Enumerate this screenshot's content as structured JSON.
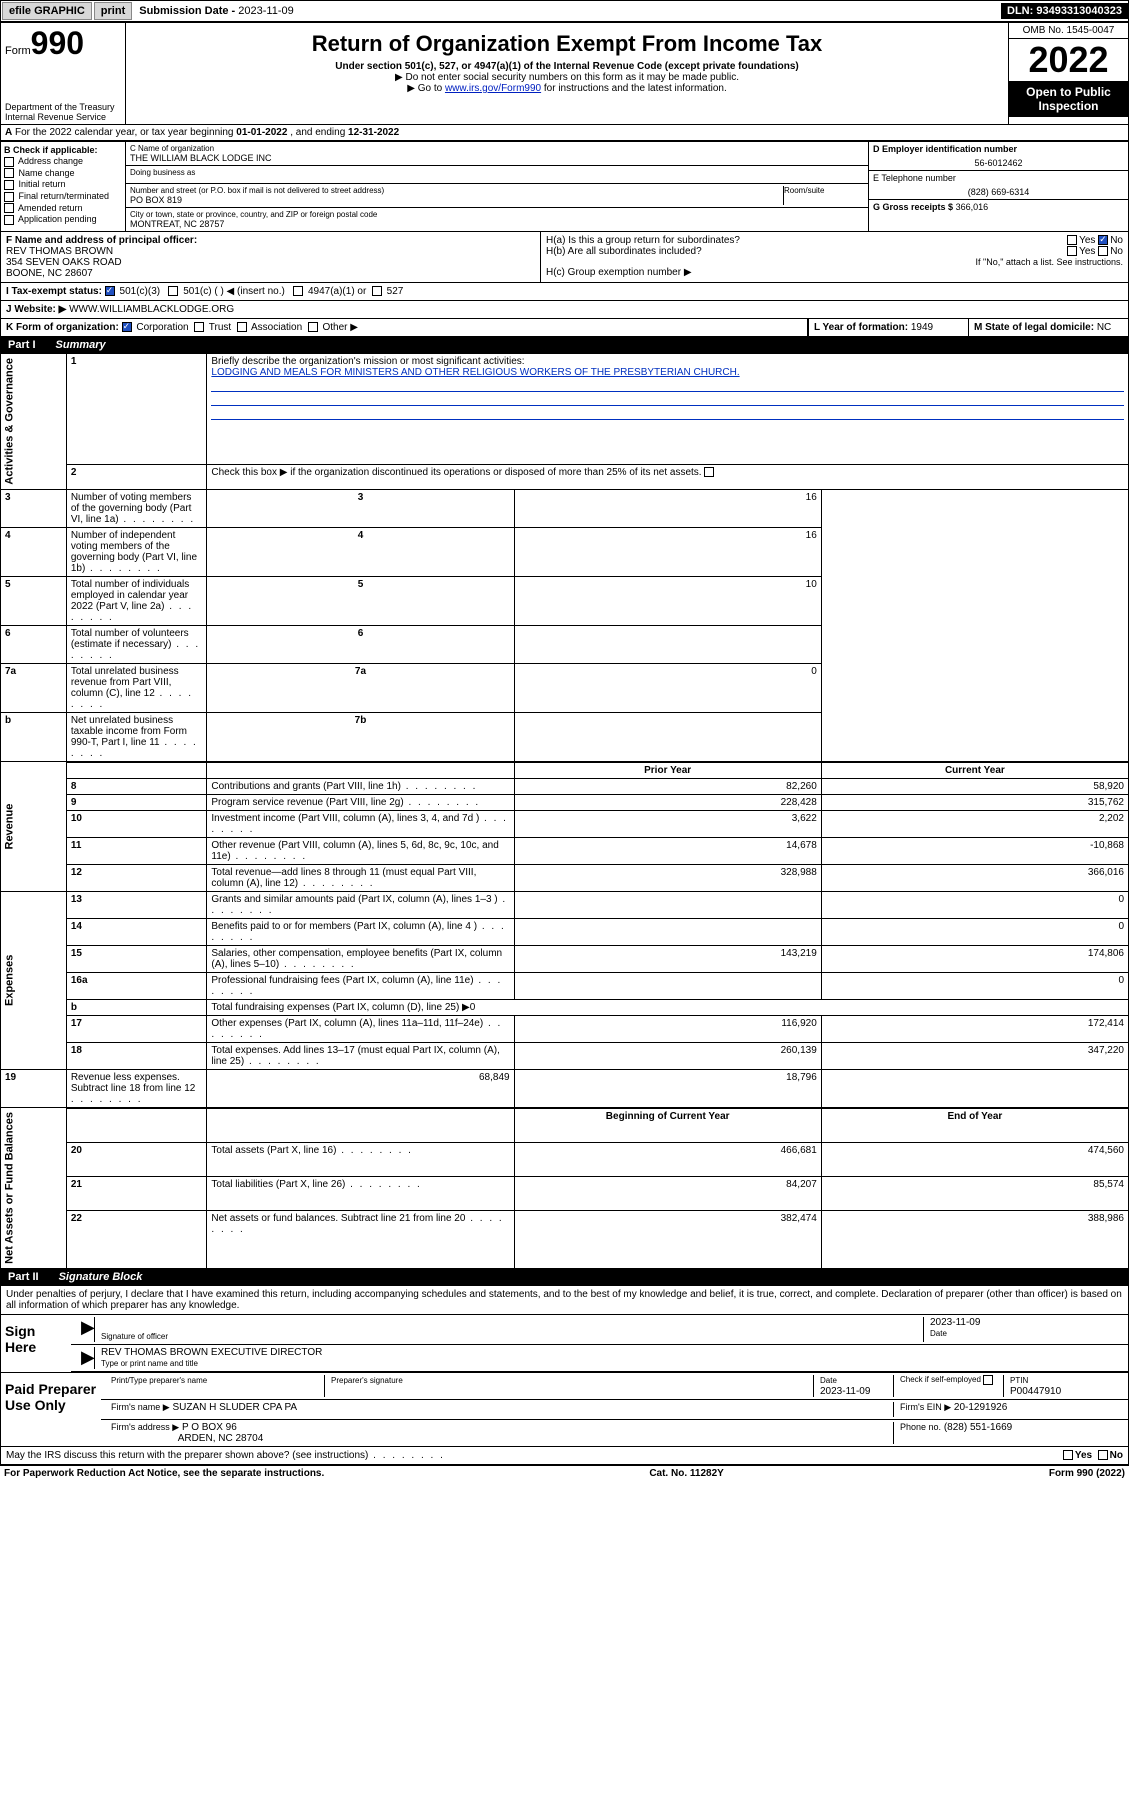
{
  "topbar": {
    "efile": "efile GRAPHIC",
    "print": "print",
    "subdate_label": "Submission Date - ",
    "subdate": "2023-11-09",
    "dln_label": "DLN: ",
    "dln": "93493313040323"
  },
  "header": {
    "form_prefix": "Form",
    "form_number": "990",
    "dept": "Department of the Treasury\nInternal Revenue Service",
    "title": "Return of Organization Exempt From Income Tax",
    "subtitle": "Under section 501(c), 527, or 4947(a)(1) of the Internal Revenue Code (except private foundations)",
    "note1": "▶ Do not enter social security numbers on this form as it may be made public.",
    "note2_pre": "▶ Go to ",
    "note2_link": "www.irs.gov/Form990",
    "note2_post": " for instructions and the latest information.",
    "omb": "OMB No. 1545-0047",
    "year": "2022",
    "open_public": "Open to Public Inspection"
  },
  "period": {
    "text_pre": "For the 2022 calendar year, or tax year beginning ",
    "begin": "01-01-2022",
    "text_mid": " , and ending ",
    "end": "12-31-2022",
    "label_a": "A"
  },
  "box_b": {
    "label": "B Check if applicable:",
    "items": [
      "Address change",
      "Name change",
      "Initial return",
      "Final return/terminated",
      "Amended return",
      "Application pending"
    ]
  },
  "box_c": {
    "name_label": "C Name of organization",
    "name": "THE WILLIAM BLACK LODGE INC",
    "dba_label": "Doing business as",
    "dba": "",
    "addr_label": "Number and street (or P.O. box if mail is not delivered to street address)",
    "room_label": "Room/suite",
    "addr": "PO BOX 819",
    "city_label": "City or town, state or province, country, and ZIP or foreign postal code",
    "city": "MONTREAT, NC  28757"
  },
  "box_d": {
    "label": "D Employer identification number",
    "value": "56-6012462"
  },
  "box_e": {
    "label": "E Telephone number",
    "value": "(828) 669-6314"
  },
  "box_g": {
    "label": "G Gross receipts $",
    "value": "366,016"
  },
  "box_f": {
    "label": "F  Name and address of principal officer:",
    "name": "REV THOMAS BROWN",
    "addr1": "354 SEVEN OAKS ROAD",
    "addr2": "BOONE, NC  28607"
  },
  "box_h": {
    "ha": "H(a)  Is this a group return for subordinates?",
    "hb": "H(b)  Are all subordinates included?",
    "hb_note": "If \"No,\" attach a list. See instructions.",
    "hc": "H(c)  Group exemption number ▶",
    "yes": "Yes",
    "no": "No"
  },
  "row_i": {
    "label": "I   Tax-exempt status:",
    "opts": [
      "501(c)(3)",
      "501(c) (   ) ◀ (insert no.)",
      "4947(a)(1) or",
      "527"
    ]
  },
  "row_j": {
    "label": "J   Website: ▶",
    "value": "WWW.WILLIAMBLACKLODGE.ORG"
  },
  "row_k": {
    "label": "K Form of organization:",
    "opts": [
      "Corporation",
      "Trust",
      "Association",
      "Other ▶"
    ]
  },
  "row_l": {
    "label": "L Year of formation:",
    "value": "1949"
  },
  "row_m": {
    "label": "M State of legal domicile:",
    "value": "NC"
  },
  "part1": {
    "label": "Part I",
    "title": "Summary"
  },
  "summary": {
    "q1_label": "1",
    "q1": "Briefly describe the organization's mission or most significant activities:",
    "q1_text": "LODGING AND MEALS FOR MINISTERS AND OTHER RELIGIOUS WORKERS OF THE PRESBYTERIAN CHURCH.",
    "q2_label": "2",
    "q2": "Check this box ▶        if the organization discontinued its operations or disposed of more than 25% of its net assets.",
    "rows_gov": [
      {
        "n": "3",
        "t": "Number of voting members of the governing body (Part VI, line 1a)",
        "box": "3",
        "v": "16"
      },
      {
        "n": "4",
        "t": "Number of independent voting members of the governing body (Part VI, line 1b)",
        "box": "4",
        "v": "16"
      },
      {
        "n": "5",
        "t": "Total number of individuals employed in calendar year 2022 (Part V, line 2a)",
        "box": "5",
        "v": "10"
      },
      {
        "n": "6",
        "t": "Total number of volunteers (estimate if necessary)",
        "box": "6",
        "v": ""
      },
      {
        "n": "7a",
        "t": "Total unrelated business revenue from Part VIII, column (C), line 12",
        "box": "7a",
        "v": "0"
      },
      {
        "n": "b",
        "t": "Net unrelated business taxable income from Form 990-T, Part I, line 11",
        "box": "7b",
        "v": ""
      }
    ],
    "col_prior": "Prior Year",
    "col_current": "Current Year",
    "rows_rev": [
      {
        "n": "8",
        "t": "Contributions and grants (Part VIII, line 1h)",
        "p": "82,260",
        "c": "58,920"
      },
      {
        "n": "9",
        "t": "Program service revenue (Part VIII, line 2g)",
        "p": "228,428",
        "c": "315,762"
      },
      {
        "n": "10",
        "t": "Investment income (Part VIII, column (A), lines 3, 4, and 7d )",
        "p": "3,622",
        "c": "2,202"
      },
      {
        "n": "11",
        "t": "Other revenue (Part VIII, column (A), lines 5, 6d, 8c, 9c, 10c, and 11e)",
        "p": "14,678",
        "c": "-10,868"
      },
      {
        "n": "12",
        "t": "Total revenue—add lines 8 through 11 (must equal Part VIII, column (A), line 12)",
        "p": "328,988",
        "c": "366,016"
      }
    ],
    "rows_exp": [
      {
        "n": "13",
        "t": "Grants and similar amounts paid (Part IX, column (A), lines 1–3 )",
        "p": "",
        "c": "0"
      },
      {
        "n": "14",
        "t": "Benefits paid to or for members (Part IX, column (A), line 4 )",
        "p": "",
        "c": "0"
      },
      {
        "n": "15",
        "t": "Salaries, other compensation, employee benefits (Part IX, column (A), lines 5–10)",
        "p": "143,219",
        "c": "174,806"
      },
      {
        "n": "16a",
        "t": "Professional fundraising fees (Part IX, column (A), line 11e)",
        "p": "",
        "c": "0"
      },
      {
        "n": "b",
        "t": "Total fundraising expenses (Part IX, column (D), line 25) ▶0",
        "p": "—",
        "c": "—"
      },
      {
        "n": "17",
        "t": "Other expenses (Part IX, column (A), lines 11a–11d, 11f–24e)",
        "p": "116,920",
        "c": "172,414"
      },
      {
        "n": "18",
        "t": "Total expenses. Add lines 13–17 (must equal Part IX, column (A), line 25)",
        "p": "260,139",
        "c": "347,220"
      },
      {
        "n": "19",
        "t": "Revenue less expenses. Subtract line 18 from line 12",
        "p": "68,849",
        "c": "18,796"
      }
    ],
    "col_begin": "Beginning of Current Year",
    "col_end": "End of Year",
    "rows_net": [
      {
        "n": "20",
        "t": "Total assets (Part X, line 16)",
        "p": "466,681",
        "c": "474,560"
      },
      {
        "n": "21",
        "t": "Total liabilities (Part X, line 26)",
        "p": "84,207",
        "c": "85,574"
      },
      {
        "n": "22",
        "t": "Net assets or fund balances. Subtract line 21 from line 20",
        "p": "382,474",
        "c": "388,986"
      }
    ],
    "vlabels": {
      "gov": "Activities & Governance",
      "rev": "Revenue",
      "exp": "Expenses",
      "net": "Net Assets or Fund Balances"
    }
  },
  "part2": {
    "label": "Part II",
    "title": "Signature Block"
  },
  "sig": {
    "decl": "Under penalties of perjury, I declare that I have examined this return, including accompanying schedules and statements, and to the best of my knowledge and belief, it is true, correct, and complete. Declaration of preparer (other than officer) is based on all information of which preparer has any knowledge.",
    "sign_here": "Sign Here",
    "sig_officer": "Signature of officer",
    "date": "Date",
    "date_val": "2023-11-09",
    "name_title": "REV THOMAS BROWN  EXECUTIVE DIRECTOR",
    "name_title_lbl": "Type or print name and title",
    "paid": "Paid Preparer Use Only",
    "prep_name_lbl": "Print/Type preparer's name",
    "prep_sig_lbl": "Preparer's signature",
    "prep_date_lbl": "Date",
    "prep_date": "2023-11-09",
    "check_self": "Check         if self-employed",
    "ptin_lbl": "PTIN",
    "ptin": "P00447910",
    "firm_name_lbl": "Firm's name     ▶",
    "firm_name": "SUZAN H SLUDER CPA PA",
    "firm_ein_lbl": "Firm's EIN ▶",
    "firm_ein": "20-1291926",
    "firm_addr_lbl": "Firm's address ▶",
    "firm_addr1": "P O BOX 96",
    "firm_addr2": "ARDEN, NC  28704",
    "phone_lbl": "Phone no.",
    "phone": "(828) 551-1669",
    "discuss": "May the IRS discuss this return with the preparer shown above? (see instructions)"
  },
  "footer": {
    "left": "For Paperwork Reduction Act Notice, see the separate instructions.",
    "mid": "Cat. No. 11282Y",
    "right": "Form 990 (2022)"
  }
}
